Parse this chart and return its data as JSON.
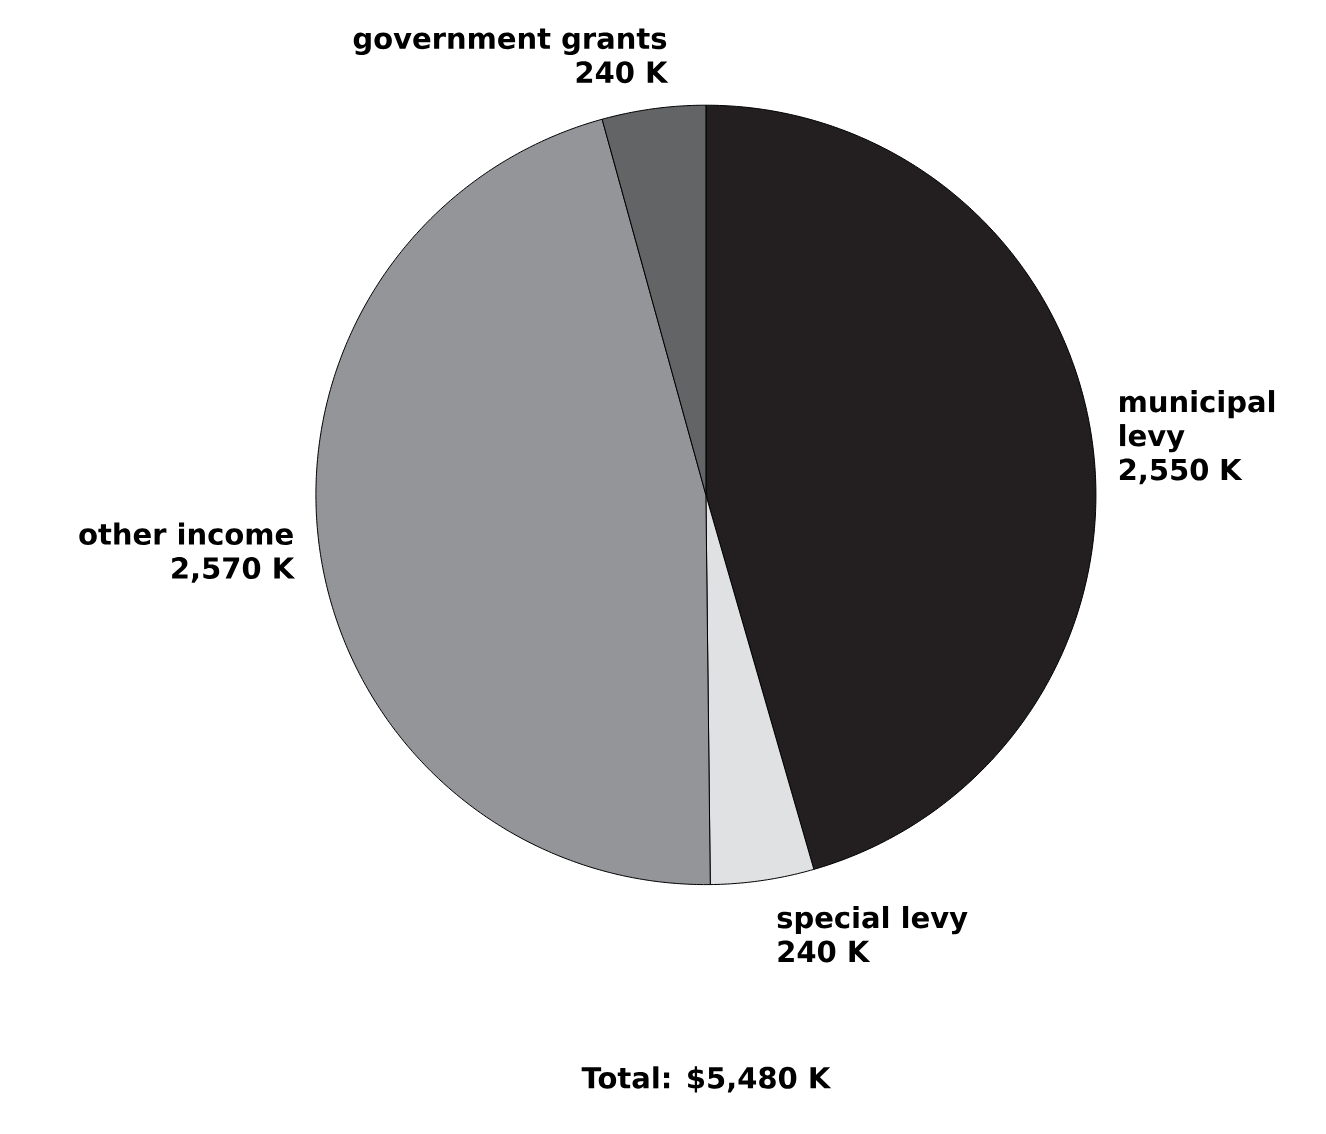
{
  "chart_data": {
    "type": "pie",
    "categories": [
      "municipal levy",
      "special levy",
      "other income",
      "government grants"
    ],
    "values": [
      2550,
      240,
      2570,
      240
    ],
    "value_labels": [
      "2,550 K",
      "240 K",
      "2,570 K",
      "240 K"
    ],
    "colors": [
      "#231f20",
      "#e0e1e2",
      "#939598",
      "#636466"
    ],
    "annotations": [
      "Total: $5,480 K"
    ]
  }
}
